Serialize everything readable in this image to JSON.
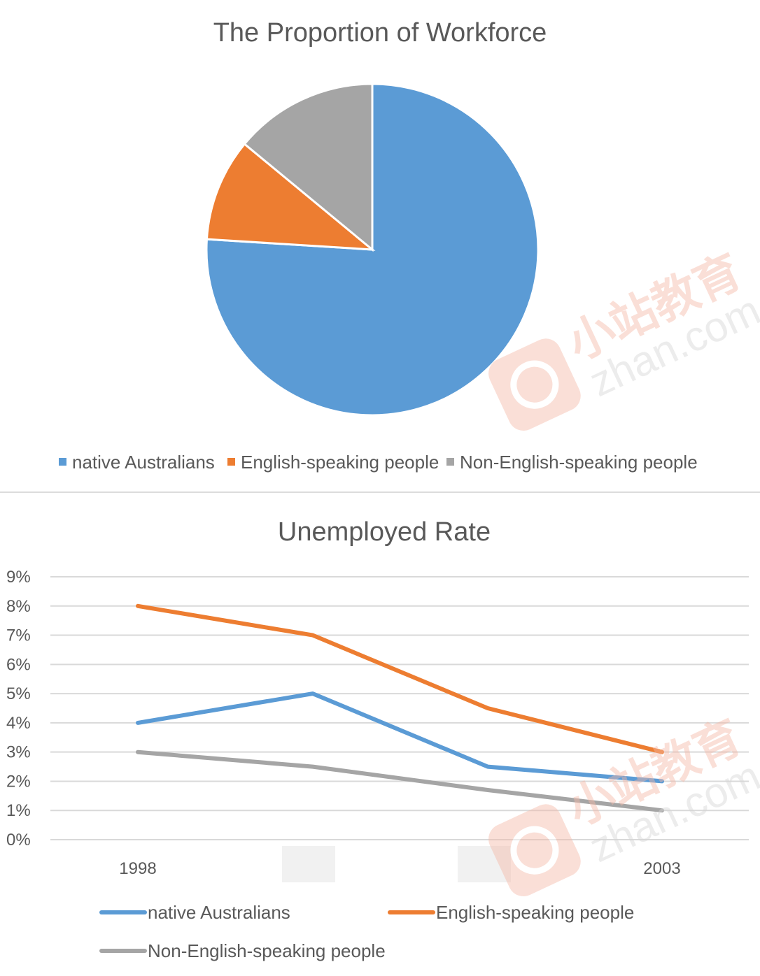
{
  "watermark": {
    "brand": "小站教育",
    "domain": "zhan.com",
    "color": "#f5b9a8"
  },
  "chart_data": [
    {
      "type": "pie",
      "title": "The Proportion of Workforce",
      "categories": [
        "native Australians",
        "English-speaking people",
        "Non-English-speaking people"
      ],
      "values": [
        76,
        10,
        14
      ],
      "colors": [
        "#5b9bd5",
        "#ed7d31",
        "#a5a5a5"
      ],
      "legend": "bottom"
    },
    {
      "type": "line",
      "title": "Unemployed Rate",
      "categories": [
        "1998",
        "",
        "",
        "2003"
      ],
      "ylim": [
        0,
        9
      ],
      "yticks": [
        "0%",
        "1%",
        "2%",
        "3%",
        "4%",
        "5%",
        "6%",
        "7%",
        "8%",
        "9%"
      ],
      "grid": true,
      "legend": "bottom",
      "series": [
        {
          "name": "native Australians",
          "color": "#5b9bd5",
          "values": [
            4,
            5,
            2.5,
            2
          ]
        },
        {
          "name": "English-speaking people",
          "color": "#ed7d31",
          "values": [
            8,
            7,
            4.5,
            3
          ]
        },
        {
          "name": "Non-English-speaking people",
          "color": "#a5a5a5",
          "values": [
            3,
            2.5,
            1.7,
            1
          ]
        }
      ]
    }
  ]
}
